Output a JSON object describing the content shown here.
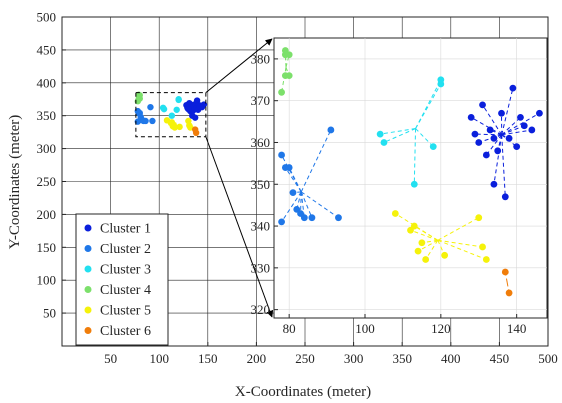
{
  "chart_data": {
    "type": "scatter",
    "title": "",
    "xlabel": "X-Coordinates (meter)",
    "ylabel": "Y-Coordinates (meter)",
    "xlim": [
      0,
      500
    ],
    "ylim": [
      0,
      500
    ],
    "xticks": [
      50,
      100,
      150,
      200,
      250,
      300,
      350,
      400,
      450,
      500
    ],
    "yticks": [
      50,
      100,
      150,
      200,
      250,
      300,
      350,
      400,
      450,
      500
    ],
    "grid": true,
    "legend_position": "bottom-left",
    "series": [
      {
        "name": "Cluster 1",
        "color": "#0a1fdc",
        "points": [
          [
            128,
            366
          ],
          [
            131,
            369
          ],
          [
            134,
            361
          ],
          [
            129,
            362
          ],
          [
            132,
            357
          ],
          [
            134,
            350
          ],
          [
            136,
            367
          ],
          [
            139,
            373
          ],
          [
            137,
            347
          ],
          [
            141,
            366
          ],
          [
            144,
            363
          ],
          [
            146,
            367
          ],
          [
            135,
            358
          ],
          [
            133,
            363
          ],
          [
            138,
            361
          ],
          [
            140,
            359
          ],
          [
            142,
            364
          ],
          [
            130,
            360
          ]
        ]
      },
      {
        "name": "Cluster 2",
        "color": "#1f77e8",
        "points": [
          [
            78,
            357
          ],
          [
            79,
            354
          ],
          [
            80,
            354
          ],
          [
            81,
            348
          ],
          [
            82,
            344
          ],
          [
            83,
            343
          ],
          [
            84,
            342
          ],
          [
            86,
            342
          ],
          [
            91,
            363
          ],
          [
            93,
            342
          ],
          [
            78,
            341
          ]
        ]
      },
      {
        "name": "Cluster 3",
        "color": "#22e0f0",
        "points": [
          [
            104,
            362
          ],
          [
            105,
            360
          ],
          [
            113,
            350
          ],
          [
            118,
            359
          ],
          [
            120,
            375
          ],
          [
            120,
            374
          ]
        ]
      },
      {
        "name": "Cluster 4",
        "color": "#7ce06b",
        "points": [
          [
            79,
            382
          ],
          [
            80,
            381
          ],
          [
            79,
            376
          ],
          [
            80,
            376
          ],
          [
            78,
            372
          ],
          [
            79,
            381
          ]
        ]
      },
      {
        "name": "Cluster 5",
        "color": "#f5f20a",
        "points": [
          [
            108,
            343
          ],
          [
            112,
            339
          ],
          [
            113,
            340
          ],
          [
            114,
            334
          ],
          [
            115,
            336
          ],
          [
            116,
            332
          ],
          [
            121,
            333
          ],
          [
            130,
            342
          ],
          [
            131,
            335
          ],
          [
            132,
            332
          ]
        ]
      },
      {
        "name": "Cluster 6",
        "color": "#f07d0a",
        "points": [
          [
            137,
            329
          ],
          [
            138,
            324
          ]
        ]
      }
    ],
    "inset": {
      "xlim": [
        76,
        148
      ],
      "ylim": [
        318,
        385
      ],
      "xticks": [
        80,
        100,
        120,
        140
      ],
      "yticks": [
        320,
        330,
        340,
        350,
        360,
        370,
        380
      ]
    }
  }
}
